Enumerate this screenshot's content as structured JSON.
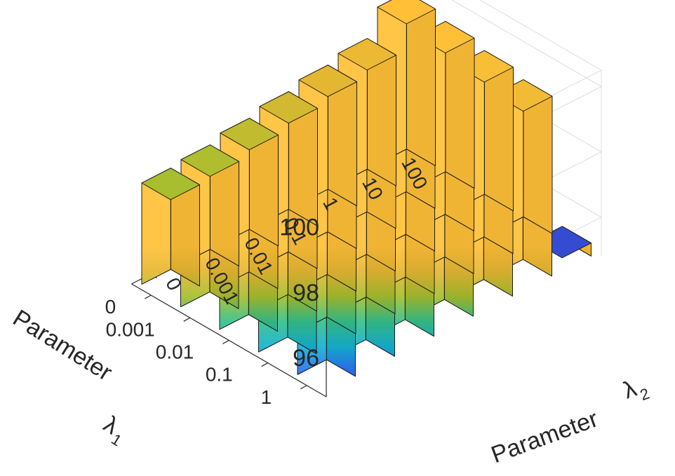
{
  "chart_data": {
    "type": "bar3d",
    "title": "",
    "xlabel": "Parameter λ1",
    "ylabel": "Parameter λ2",
    "x_label_text": "Parameter",
    "x_label_symbol": "λ",
    "x_label_sub": "1",
    "y_label_text": "Parameter",
    "y_label_symbol": "λ",
    "y_label_sub": "2",
    "x_categories": [
      "0",
      "0.001",
      "0.01",
      "0.1",
      "1"
    ],
    "y_categories": [
      "0",
      "0.001",
      "0.01",
      "0.1",
      "1",
      "10",
      "100"
    ],
    "z_ticks": [
      "96",
      "98",
      "100"
    ],
    "zlim": [
      94.8,
      100.5
    ],
    "values": [
      [
        97.9,
        98.0,
        98.2,
        98.4,
        98.6,
        98.8,
        99.6
      ],
      [
        98.0,
        98.2,
        98.3,
        98.5,
        98.8,
        99.0,
        99.4
      ],
      [
        98.1,
        98.2,
        98.4,
        98.7,
        99.0,
        99.1,
        99.2
      ],
      [
        98.1,
        98.3,
        98.5,
        98.8,
        99.1,
        99.1,
        99.0
      ],
      [
        98.2,
        98.3,
        98.5,
        98.9,
        99.2,
        99.2,
        95.2
      ]
    ],
    "colormap": [
      "#3e26a8",
      "#2d6ff7",
      "#15b2d3",
      "#35c08a",
      "#a5be2e",
      "#e6b732",
      "#ffc038"
    ]
  }
}
